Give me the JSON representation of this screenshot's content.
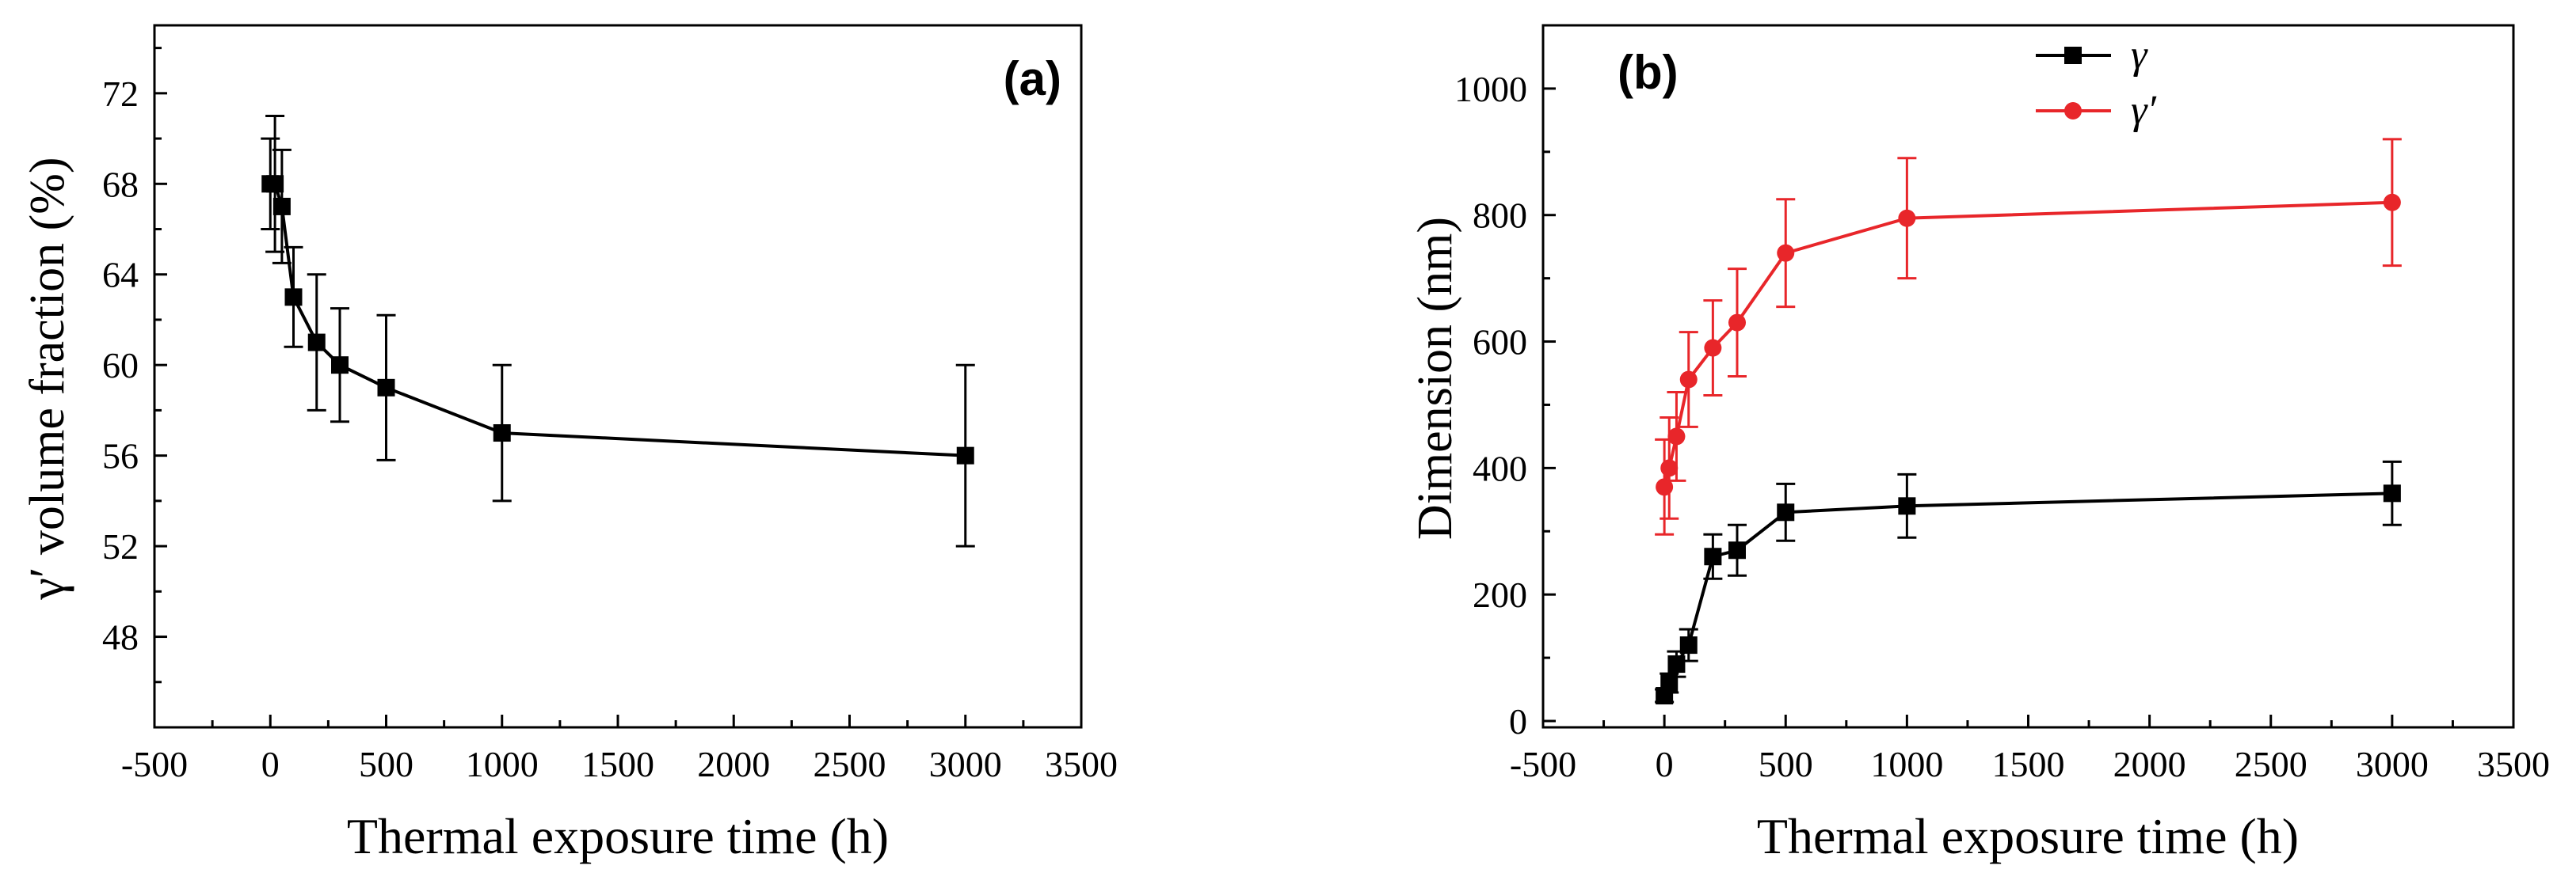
{
  "chart_data": [
    {
      "type": "line",
      "panel_label": "(a)",
      "title": "",
      "xlabel": "Thermal exposure time (h)",
      "ylabel": "γ′ volume fraction (%)",
      "xlim": [
        -500,
        3500
      ],
      "ylim": [
        44,
        75
      ],
      "x_ticks": [
        -500,
        0,
        500,
        1000,
        1500,
        2000,
        2500,
        3000,
        3500
      ],
      "y_ticks": [
        48,
        52,
        56,
        60,
        64,
        68,
        72
      ],
      "grid": false,
      "legend": null,
      "series": [
        {
          "name": "γ′ volume fraction",
          "color": "#000000",
          "marker": "square",
          "x": [
            0,
            20,
            50,
            100,
            200,
            300,
            500,
            1000,
            3000
          ],
          "y": [
            68,
            68,
            67,
            63,
            61,
            60,
            59,
            57,
            56
          ],
          "error": [
            2,
            3,
            2.5,
            2.2,
            3,
            2.5,
            3.2,
            3,
            4
          ]
        }
      ]
    },
    {
      "type": "line",
      "panel_label": "(b)",
      "title": "",
      "xlabel": "Thermal exposure time (h)",
      "ylabel": "Dimension (nm)",
      "xlim": [
        -500,
        3500
      ],
      "ylim": [
        -10,
        1100
      ],
      "x_ticks": [
        -500,
        0,
        500,
        1000,
        1500,
        2000,
        2500,
        3000,
        3500
      ],
      "y_ticks": [
        0,
        200,
        400,
        600,
        800,
        1000
      ],
      "grid": false,
      "legend": "top-center",
      "series": [
        {
          "name": "γ",
          "color": "#000000",
          "marker": "square",
          "x": [
            0,
            20,
            50,
            100,
            200,
            300,
            500,
            1000,
            3000
          ],
          "y": [
            40,
            60,
            90,
            120,
            260,
            270,
            330,
            340,
            360
          ],
          "error": [
            10,
            15,
            20,
            25,
            35,
            40,
            45,
            50,
            50
          ]
        },
        {
          "name": "γ′",
          "color": "#e8262a",
          "marker": "circle",
          "x": [
            0,
            20,
            50,
            100,
            200,
            300,
            500,
            1000,
            3000
          ],
          "y": [
            370,
            400,
            450,
            540,
            590,
            630,
            740,
            795,
            820
          ],
          "error": [
            75,
            80,
            70,
            75,
            75,
            85,
            85,
            95,
            100
          ]
        }
      ]
    }
  ]
}
